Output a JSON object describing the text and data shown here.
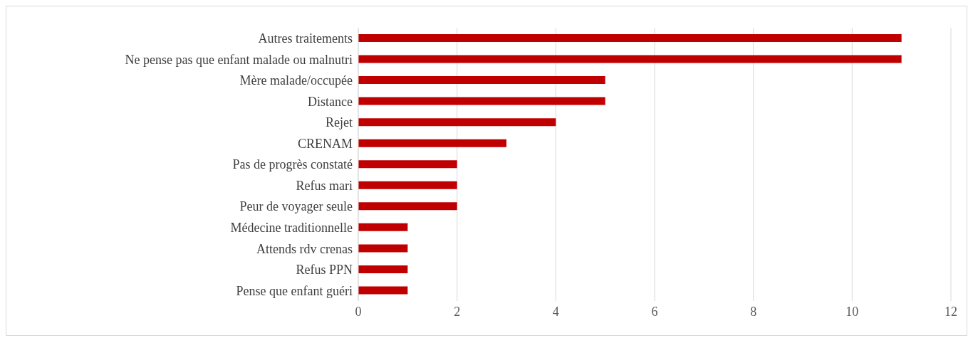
{
  "chart_data": {
    "type": "bar",
    "orientation": "horizontal",
    "categories": [
      "Autres traitements",
      "Ne pense pas que enfant malade ou malnutri",
      "Mère malade/occupée",
      "Distance",
      "Rejet",
      "CRENAM",
      "Pas de progrès constaté",
      "Refus mari",
      "Peur de voyager seule",
      "Médecine traditionnelle",
      "Attends rdv crenas",
      "Refus PPN",
      "Pense que enfant guéri"
    ],
    "values": [
      11,
      11,
      5,
      5,
      4,
      3,
      2,
      2,
      2,
      1,
      1,
      1,
      1
    ],
    "color": "#c00000",
    "xlim": [
      0,
      12
    ],
    "xticks": [
      0,
      2,
      4,
      6,
      8,
      10,
      12
    ],
    "grid": "x"
  }
}
